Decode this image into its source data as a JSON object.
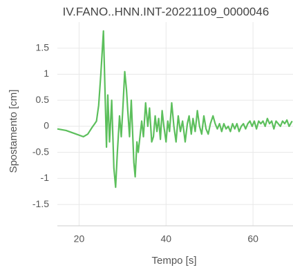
{
  "chart_data": {
    "type": "line",
    "title": "IV.FANO..HNN.INT-20221109_0000046",
    "x_label": "Tempo [s]",
    "y_label": "Spostamento [cm]",
    "xlim": [
      15,
      69.2
    ],
    "ylim": [
      -1.91,
      2.0
    ],
    "xticks": [
      20,
      40,
      60
    ],
    "yticks": [
      1.5,
      1,
      0.5,
      0,
      -0.5,
      -1,
      -1.5
    ],
    "grid": true,
    "x": [
      15,
      17,
      19,
      21,
      22,
      23,
      23.6,
      24,
      24.5,
      25,
      25.6,
      26.3,
      26.6,
      27,
      27.5,
      28,
      28.4,
      28.8,
      29.3,
      29.7,
      30.1,
      30.5,
      30.9,
      31.2,
      31.6,
      32,
      32.6,
      32.9,
      33.3,
      33.6,
      34,
      34.4,
      34.8,
      35.3,
      35.8,
      36.2,
      36.7,
      37.1,
      37.5,
      37.9,
      38.3,
      38.7,
      39.1,
      39.5,
      40,
      40.4,
      40.8,
      41.3,
      41.8,
      42.3,
      42.8,
      43.3,
      43.8,
      44.4,
      44.9,
      45.3,
      45.8,
      46.2,
      46.7,
      47.2,
      47.7,
      48.2,
      48.7,
      49.2,
      49.7,
      50.2,
      50.8,
      51.3,
      51.8,
      52.3,
      52.8,
      53.3,
      53.8,
      54.3,
      54.8,
      55.3,
      55.8,
      56.3,
      56.8,
      57.3,
      57.8,
      58.3,
      58.8,
      59.3,
      59.8,
      60.3,
      60.8,
      61.3,
      61.8,
      62.3,
      62.8,
      63.3,
      63.8,
      64.3,
      64.8,
      65.3,
      65.8,
      66.3,
      66.8,
      67.3,
      67.8,
      68.3,
      69
    ],
    "series": [
      {
        "color": "#5cbf5c",
        "values": [
          -0.05,
          -0.08,
          -0.14,
          -0.2,
          -0.15,
          -0.02,
          0.05,
          0.1,
          0.4,
          1.0,
          1.83,
          -0.4,
          0.6,
          -0.3,
          0.5,
          -0.8,
          -1.17,
          -0.5,
          0.2,
          -0.2,
          0.4,
          1.05,
          0.7,
          0.3,
          -0.2,
          0.5,
          -0.7,
          -0.97,
          -0.3,
          -0.5,
          -0.2,
          0.1,
          -0.2,
          0.45,
          0.0,
          0.35,
          -0.3,
          -0.2,
          0.2,
          -0.1,
          0.15,
          -0.25,
          0.3,
          0.0,
          -0.3,
          0.1,
          -0.1,
          0.45,
          0.0,
          -0.3,
          0.2,
          -0.1,
          0.1,
          -0.3,
          0.05,
          0.2,
          -0.15,
          0.15,
          -0.1,
          0.3,
          0.0,
          -0.15,
          0.2,
          -0.05,
          -0.15,
          0.05,
          0.2,
          0.05,
          -0.05,
          0.05,
          -0.1,
          0.05,
          -0.05,
          0.0,
          -0.1,
          0.05,
          -0.05,
          0.05,
          -0.1,
          0.0,
          0.05,
          -0.05,
          0.05,
          0.1,
          0.0,
          0.1,
          -0.05,
          0.1,
          0.05,
          0.1,
          0.0,
          0.15,
          0.05,
          0.1,
          -0.05,
          0.1,
          0.05,
          0.0,
          0.1,
          0.05,
          0.12,
          0.0,
          0.1
        ]
      }
    ]
  }
}
